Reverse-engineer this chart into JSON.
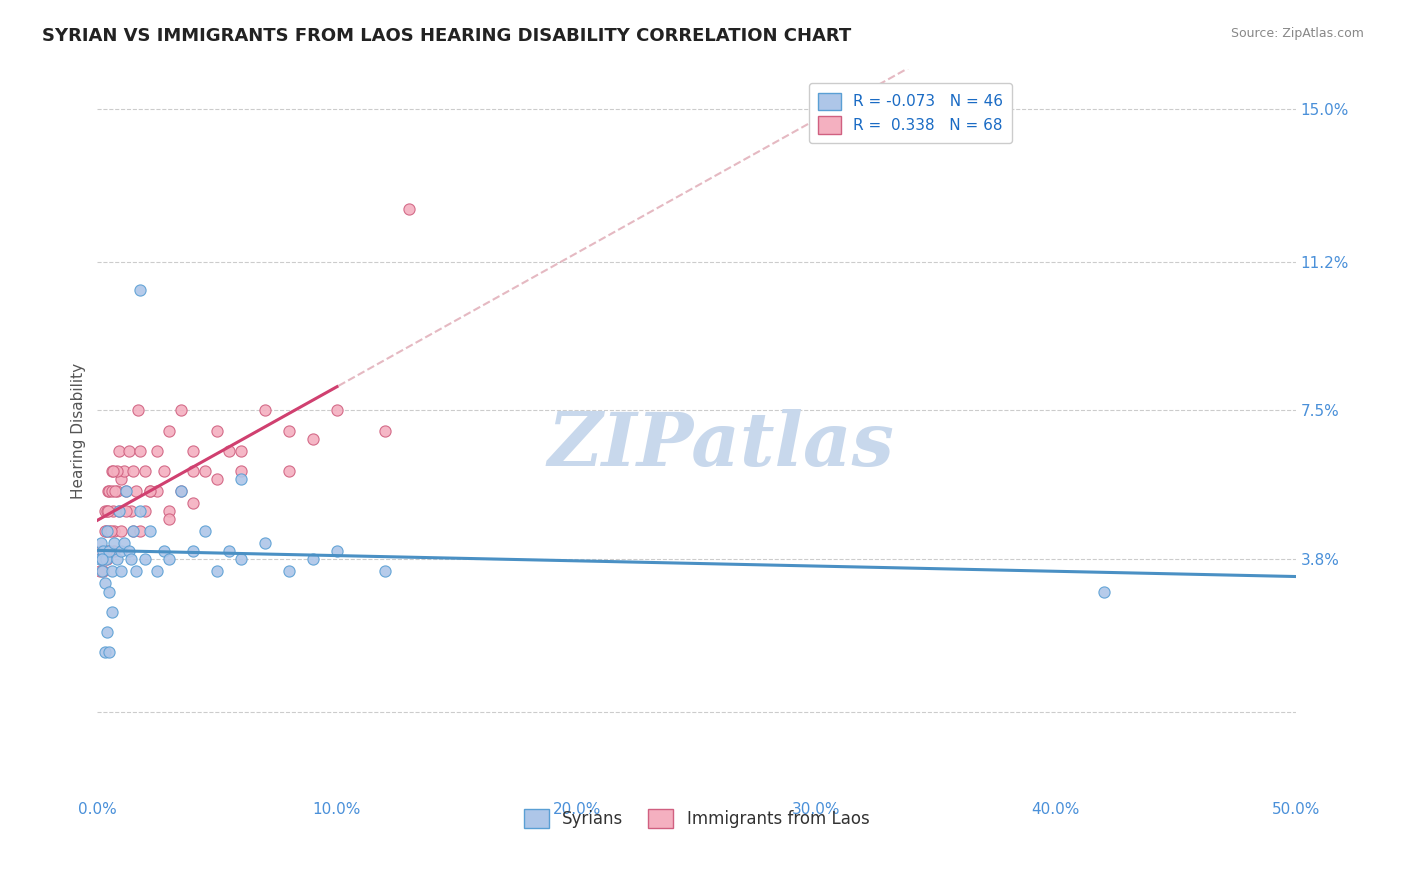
{
  "title": "SYRIAN VS IMMIGRANTS FROM LAOS HEARING DISABILITY CORRELATION CHART",
  "source": "Source: ZipAtlas.com",
  "ylabel": "Hearing Disability",
  "xlim": [
    0.0,
    50.0
  ],
  "ylim": [
    -2.0,
    16.0
  ],
  "ytick_vals": [
    0.0,
    3.8,
    7.5,
    11.2,
    15.0
  ],
  "ytick_labels": [
    "",
    "3.8%",
    "7.5%",
    "11.2%",
    "15.0%"
  ],
  "xtick_vals": [
    0.0,
    10.0,
    20.0,
    30.0,
    40.0,
    50.0
  ],
  "xtick_labels": [
    "0.0%",
    "10.0%",
    "20.0%",
    "30.0%",
    "40.0%",
    "50.0%"
  ],
  "syrians": {
    "name": "Syrians",
    "scatter_color": "#aec6e8",
    "edge_color": "#5a9fd4",
    "trend_color": "#4a90c4",
    "x": [
      0.1,
      0.15,
      0.2,
      0.25,
      0.3,
      0.35,
      0.4,
      0.5,
      0.5,
      0.6,
      0.7,
      0.8,
      0.9,
      1.0,
      1.0,
      1.1,
      1.2,
      1.3,
      1.4,
      1.5,
      1.6,
      1.8,
      2.0,
      2.2,
      2.5,
      2.8,
      3.0,
      3.5,
      4.0,
      4.5,
      5.0,
      5.5,
      6.0,
      7.0,
      8.0,
      9.0,
      10.0,
      12.0,
      1.8,
      0.3,
      0.4,
      0.5,
      0.6,
      42.0,
      6.0,
      0.2
    ],
    "y": [
      3.8,
      4.2,
      3.5,
      4.0,
      3.2,
      3.8,
      4.5,
      3.0,
      4.0,
      3.5,
      4.2,
      3.8,
      5.0,
      3.5,
      4.0,
      4.2,
      5.5,
      4.0,
      3.8,
      4.5,
      3.5,
      5.0,
      3.8,
      4.5,
      3.5,
      4.0,
      3.8,
      5.5,
      4.0,
      4.5,
      3.5,
      4.0,
      3.8,
      4.2,
      3.5,
      3.8,
      4.0,
      3.5,
      10.5,
      1.5,
      2.0,
      1.5,
      2.5,
      3.0,
      5.8,
      3.8
    ]
  },
  "laos": {
    "name": "Immigrants from Laos",
    "scatter_color": "#f4b0c0",
    "edge_color": "#d06080",
    "trend_color": "#d04070",
    "x": [
      0.1,
      0.15,
      0.2,
      0.3,
      0.35,
      0.4,
      0.45,
      0.5,
      0.5,
      0.6,
      0.65,
      0.7,
      0.8,
      0.9,
      1.0,
      1.0,
      1.1,
      1.2,
      1.3,
      1.4,
      1.5,
      1.6,
      1.7,
      1.8,
      2.0,
      2.2,
      2.5,
      2.8,
      3.0,
      3.5,
      4.0,
      4.5,
      5.0,
      5.5,
      6.0,
      7.0,
      8.0,
      9.0,
      10.0,
      0.3,
      0.4,
      0.5,
      0.6,
      0.7,
      0.8,
      0.9,
      13.0,
      1.5,
      2.0,
      2.5,
      3.0,
      3.5,
      4.0,
      0.25,
      0.35,
      0.45,
      0.55,
      0.65,
      0.75,
      1.2,
      1.8,
      2.2,
      3.0,
      4.0,
      5.0,
      6.0,
      8.0,
      12.0
    ],
    "y": [
      3.5,
      4.0,
      3.8,
      5.0,
      4.5,
      3.8,
      5.5,
      4.0,
      5.5,
      6.0,
      5.0,
      4.5,
      5.5,
      6.5,
      4.5,
      5.8,
      6.0,
      5.5,
      6.5,
      5.0,
      6.0,
      5.5,
      7.5,
      6.5,
      6.0,
      5.5,
      6.5,
      6.0,
      7.0,
      7.5,
      6.5,
      6.0,
      7.0,
      6.5,
      6.0,
      7.5,
      7.0,
      6.8,
      7.5,
      4.5,
      5.0,
      4.5,
      5.5,
      4.0,
      6.0,
      5.0,
      12.5,
      4.5,
      5.0,
      5.5,
      5.0,
      5.5,
      6.0,
      3.5,
      4.0,
      5.0,
      4.5,
      6.0,
      5.5,
      5.0,
      4.5,
      5.5,
      4.8,
      5.2,
      5.8,
      6.5,
      6.0,
      7.0
    ]
  },
  "watermark_text": "ZIPatlas",
  "watermark_color": "#c8d8ec",
  "background_color": "#ffffff",
  "grid_color": "#cccccc",
  "tick_color": "#4a90d9",
  "title_fontsize": 13,
  "axis_label_fontsize": 11,
  "tick_fontsize": 11,
  "legend_fontsize": 11
}
